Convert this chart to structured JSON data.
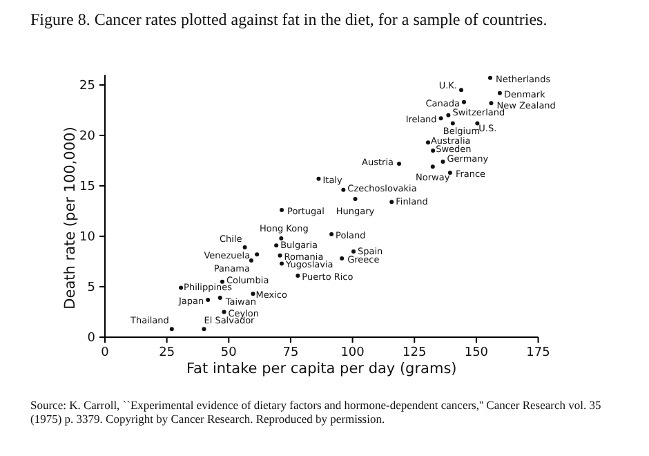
{
  "chart_data": {
    "type": "scatter",
    "title": "Figure 8.   Cancer rates plotted against fat in the diet, for a sample of countries.",
    "xlabel": "Fat intake per capita per day (grams)",
    "ylabel": "Death rate (per 100,000)",
    "x": [
      155.6,
      143.9,
      159.5,
      145,
      156,
      135.7,
      138.7,
      140.5,
      150.4,
      130.5,
      132.5,
      136.5,
      132.4,
      118.8,
      139.4,
      86.3,
      96.3,
      101.1,
      115.8,
      71.4,
      71.2,
      91.5,
      69.2,
      70.7,
      71.4,
      100.4,
      95.7,
      77.9,
      56.5,
      61.4,
      59.1,
      47.4,
      30.7,
      46.5,
      59.8,
      41.6,
      48.1,
      27,
      40
    ],
    "series": [
      {
        "color": "#111111",
        "values": [
          25.7,
          24.5,
          24.2,
          23.3,
          23.2,
          21.7,
          22.0,
          21.2,
          21.2,
          19.3,
          18.5,
          17.4,
          16.9,
          17.2,
          16.3,
          15.7,
          14.6,
          13.7,
          13.4,
          12.6,
          9.8,
          10.2,
          9.1,
          8.1,
          7.3,
          8.5,
          7.8,
          6.1,
          8.9,
          8.2,
          7.6,
          5.5,
          4.9,
          3.9,
          4.3,
          3.7,
          2.5,
          0.8,
          0.8
        ]
      }
    ],
    "marker": "circle",
    "grid": false,
    "xlim": [
      0,
      175
    ],
    "xticks": [
      0,
      25,
      50,
      75,
      100,
      125,
      150,
      175
    ],
    "ylim": [
      0,
      26
    ],
    "yticks": [
      0,
      5,
      10,
      15,
      20,
      25
    ],
    "annotations": [
      {
        "text": "Netherlands",
        "x": 155.6,
        "y": 25.7
      },
      {
        "text": "U.K.",
        "x": 143.9,
        "y": 24.5
      },
      {
        "text": "Denmark",
        "x": 159.5,
        "y": 24.2
      },
      {
        "text": "Canada",
        "x": 145,
        "y": 23.3
      },
      {
        "text": "New Zealand",
        "x": 156,
        "y": 23.2
      },
      {
        "text": "Ireland",
        "x": 135.7,
        "y": 21.7
      },
      {
        "text": "Switzerland",
        "x": 138.7,
        "y": 22.0
      },
      {
        "text": "Belgium",
        "x": 140.5,
        "y": 21.2
      },
      {
        "text": "U.S.",
        "x": 150.4,
        "y": 21.2
      },
      {
        "text": "Australia",
        "x": 130.5,
        "y": 19.3
      },
      {
        "text": "Sweden",
        "x": 132.5,
        "y": 18.5
      },
      {
        "text": "Germany",
        "x": 136.5,
        "y": 17.4
      },
      {
        "text": "Norway",
        "x": 132.4,
        "y": 16.9
      },
      {
        "text": "Austria",
        "x": 118.8,
        "y": 17.2
      },
      {
        "text": "France",
        "x": 139.4,
        "y": 16.3
      },
      {
        "text": "Italy",
        "x": 86.3,
        "y": 15.7
      },
      {
        "text": "Czechoslovakia",
        "x": 96.3,
        "y": 14.6
      },
      {
        "text": "Hungary",
        "x": 101.1,
        "y": 13.7
      },
      {
        "text": "Finland",
        "x": 115.8,
        "y": 13.4
      },
      {
        "text": "Portugal",
        "x": 71.4,
        "y": 12.6
      },
      {
        "text": "Hong Kong",
        "x": 71.2,
        "y": 9.8
      },
      {
        "text": "Poland",
        "x": 91.5,
        "y": 10.2
      },
      {
        "text": "Bulgaria",
        "x": 69.2,
        "y": 9.1
      },
      {
        "text": "Romania",
        "x": 70.7,
        "y": 8.1
      },
      {
        "text": "Yugoslavia",
        "x": 71.4,
        "y": 7.3
      },
      {
        "text": "Spain",
        "x": 100.4,
        "y": 8.5
      },
      {
        "text": "Greece",
        "x": 95.7,
        "y": 7.8
      },
      {
        "text": "Puerto Rico",
        "x": 77.9,
        "y": 6.1
      },
      {
        "text": "Chile",
        "x": 56.5,
        "y": 8.9
      },
      {
        "text": "Venezuela",
        "x": 61.4,
        "y": 8.2
      },
      {
        "text": "Panama",
        "x": 59.1,
        "y": 7.6
      },
      {
        "text": "Columbia",
        "x": 47.4,
        "y": 5.5
      },
      {
        "text": "Philippines",
        "x": 30.7,
        "y": 4.9
      },
      {
        "text": "Taiwan",
        "x": 46.5,
        "y": 3.9
      },
      {
        "text": "Mexico",
        "x": 59.8,
        "y": 4.3
      },
      {
        "text": "Japan",
        "x": 41.6,
        "y": 3.7
      },
      {
        "text": "Ceylon",
        "x": 48.1,
        "y": 2.5
      },
      {
        "text": "Thailand",
        "x": 27,
        "y": 0.8
      },
      {
        "text": "El Salvador",
        "x": 40,
        "y": 0.8
      },
      "Source: K. Carroll, ``Experimental evidence of dietary factors and hormone-dependent cancers,'' Cancer Research vol. 35 (1975) p. 3379. Copyright by Cancer Research. Reproduced by permission."
    ]
  }
}
